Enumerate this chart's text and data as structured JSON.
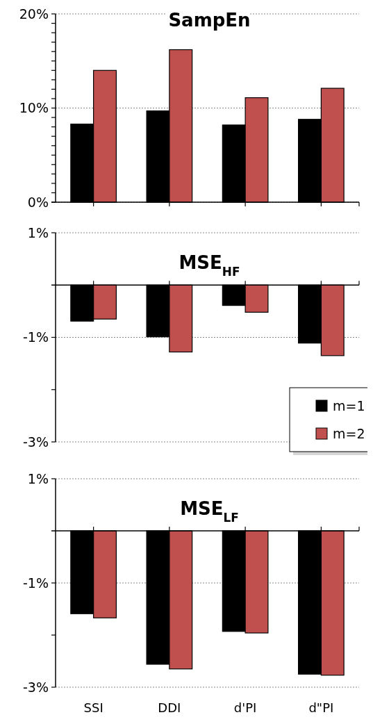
{
  "chart_data": [
    {
      "type": "bar",
      "title": "SampEn",
      "categories": [
        null,
        null,
        null,
        null
      ],
      "series": [
        {
          "color": "#000000",
          "values": [
            8.3,
            9.7,
            8.2,
            8.8
          ]
        },
        {
          "color": "#c0504d",
          "values": [
            14.0,
            16.2,
            11.1,
            12.1
          ]
        }
      ],
      "ylim": [
        0,
        20
      ],
      "yticks": [
        {
          "value": 0,
          "label": "0%"
        },
        {
          "value": 1,
          "label": null
        },
        {
          "value": 2,
          "label": null
        },
        {
          "value": 3,
          "label": null
        },
        {
          "value": 4,
          "label": null
        },
        {
          "value": 5,
          "label": null
        },
        {
          "value": 6,
          "label": null
        },
        {
          "value": 7,
          "label": null
        },
        {
          "value": 8,
          "label": null
        },
        {
          "value": 9,
          "label": null
        },
        {
          "value": 10,
          "label": "10%"
        },
        {
          "value": 11,
          "label": null
        },
        {
          "value": 12,
          "label": null
        },
        {
          "value": 13,
          "label": null
        },
        {
          "value": 14,
          "label": null
        },
        {
          "value": 15,
          "label": null
        },
        {
          "value": 16,
          "label": null
        },
        {
          "value": 17,
          "label": null
        },
        {
          "value": 18,
          "label": null
        },
        {
          "value": 19,
          "label": null
        },
        {
          "value": 20,
          "label": "20%"
        }
      ],
      "grid": "y",
      "legend": false,
      "tick_labels": "y"
    },
    {
      "type": "bar",
      "title": "MSE$_{HF}$",
      "categories": [
        null,
        null,
        null,
        null
      ],
      "series": [
        {
          "name": "m=1",
          "color": "#000000",
          "values": [
            -0.69,
            -0.99,
            -0.39,
            -1.11
          ]
        },
        {
          "name": "m=2",
          "color": "#c0504d",
          "values": [
            -0.65,
            -1.28,
            -0.52,
            -1.35
          ]
        }
      ],
      "ylim": [
        -3,
        1
      ],
      "yticks": [
        {
          "value": -3,
          "label": "-3%"
        },
        {
          "value": -2,
          "label": null
        },
        {
          "value": -1,
          "label": "-1%"
        },
        {
          "value": 1,
          "label": "1%"
        }
      ],
      "grid": "y",
      "legend": "bottom right",
      "tick_labels": "y"
    },
    {
      "type": "bar",
      "title": "MSE$_{LF}$",
      "categories": [
        "SSI",
        "DDI",
        "d'PI",
        "d\"PI"
      ],
      "series": [
        {
          "color": "#000000",
          "values": [
            -1.59,
            -2.56,
            -1.93,
            -2.75
          ]
        },
        {
          "color": "#c0504d",
          "values": [
            -1.67,
            -2.65,
            -1.96,
            -2.77
          ]
        }
      ],
      "ylim": [
        -3,
        1
      ],
      "yticks": [
        {
          "value": -3,
          "label": "-3%"
        },
        {
          "value": -2,
          "label": null
        },
        {
          "value": -1,
          "label": "-1%"
        },
        {
          "value": 1,
          "label": "1%"
        }
      ],
      "grid": "y",
      "legend": false
    }
  ]
}
